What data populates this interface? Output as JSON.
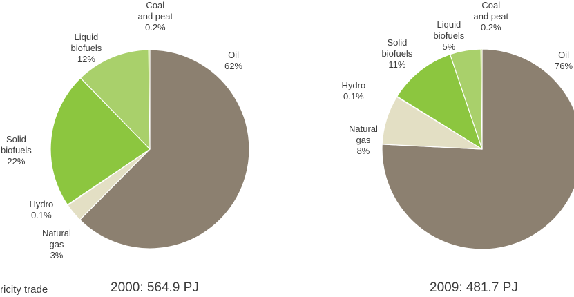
{
  "colors": {
    "Oil": "#8c8070",
    "Natural gas": "#e3dfc4",
    "Hydro": "#9aa9b2",
    "Solid biofuels": "#8cc63f",
    "Liquid biofuels": "#a9d06b",
    "Coal and peat": "#d9e8a8",
    "edge": "#ffffff"
  },
  "footer": {
    "partial_text": "ricity trade"
  },
  "chart_data": [
    {
      "type": "pie",
      "caption": "2000: 564.9 PJ",
      "slices": [
        {
          "name": "Oil",
          "value": 62,
          "label_lines": [
            "Oil",
            "62%"
          ]
        },
        {
          "name": "Natural gas",
          "value": 3,
          "label_lines": [
            "Natural",
            "gas",
            "3%"
          ]
        },
        {
          "name": "Hydro",
          "value": 0.1,
          "label_lines": [
            "Hydro",
            "0.1%"
          ]
        },
        {
          "name": "Solid biofuels",
          "value": 22,
          "label_lines": [
            "Solid",
            "biofuels",
            "22%"
          ]
        },
        {
          "name": "Liquid biofuels",
          "value": 12,
          "label_lines": [
            "Liquid",
            "biofuels",
            "12%"
          ]
        },
        {
          "name": "Coal and peat",
          "value": 0.2,
          "label_lines": [
            "Coal",
            "and peat",
            "0.2%"
          ]
        }
      ]
    },
    {
      "type": "pie",
      "caption": "2009: 481.7 PJ",
      "slices": [
        {
          "name": "Oil",
          "value": 76,
          "label_lines": [
            "Oil",
            "76%"
          ]
        },
        {
          "name": "Natural gas",
          "value": 8,
          "label_lines": [
            "Natural",
            "gas",
            "8%"
          ]
        },
        {
          "name": "Hydro",
          "value": 0.1,
          "label_lines": [
            "Hydro",
            "0.1%"
          ]
        },
        {
          "name": "Solid biofuels",
          "value": 11,
          "label_lines": [
            "Solid",
            "biofuels",
            "11%"
          ]
        },
        {
          "name": "Liquid biofuels",
          "value": 5,
          "label_lines": [
            "Liquid",
            "biofuels",
            "5%"
          ]
        },
        {
          "name": "Coal and peat",
          "value": 0.2,
          "label_lines": [
            "Coal",
            "and peat",
            "0.2%"
          ]
        }
      ]
    }
  ]
}
